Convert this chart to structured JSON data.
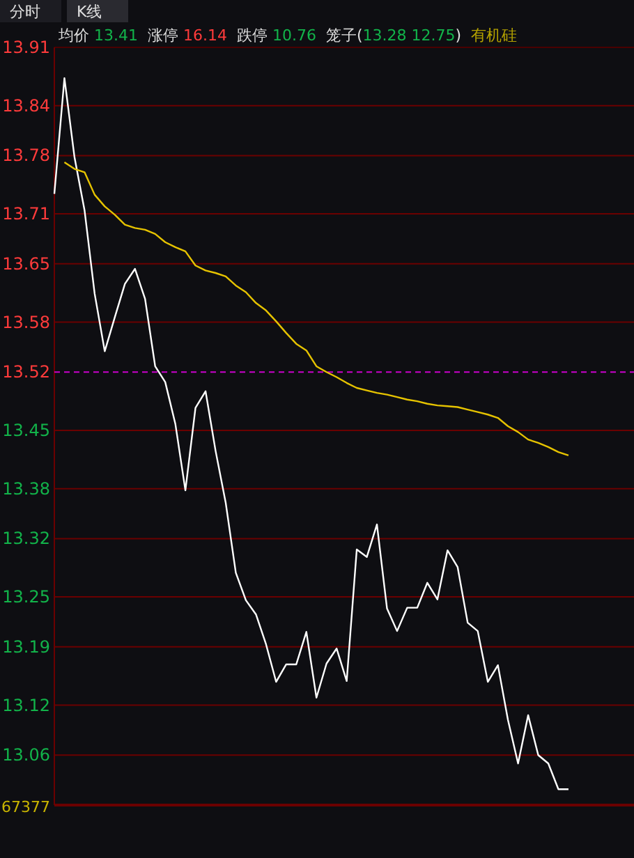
{
  "chart_data": {
    "type": "line",
    "annotations": [
      "分时",
      "K线",
      "均价 13.41",
      "涨停 16.14",
      "跌停 10.76",
      "笼子(13.28 12.75)",
      "有机硅",
      "67377"
    ],
    "categories": [
      null,
      null,
      null,
      null,
      null,
      null,
      null,
      null,
      null,
      null,
      null,
      null,
      null,
      null,
      null,
      null,
      null,
      null,
      null,
      null,
      null,
      null,
      null,
      null,
      null,
      null,
      null,
      null,
      null,
      null,
      null,
      null,
      null,
      null,
      null,
      null,
      null,
      null,
      null,
      null,
      null,
      null,
      null,
      null,
      null,
      null,
      null,
      null,
      null,
      null,
      null,
      null,
      null,
      null,
      null,
      null,
      null,
      null
    ],
    "ylim": [
      13.0,
      13.91
    ],
    "yticks": [
      13.91,
      13.84,
      13.78,
      13.71,
      13.65,
      13.58,
      13.52,
      13.45,
      13.38,
      13.32,
      13.25,
      13.19,
      13.12,
      13.06
    ],
    "tick_labels": "y",
    "grid": "y",
    "marker": "none",
    "ref_lines": [
      {
        "axis": "y",
        "value": 13.52,
        "color": "#cc00cc",
        "line_style": "dashed"
      }
    ],
    "series": [
      {
        "color": "#ffffff",
        "values": [
          13.734,
          13.873,
          13.778,
          13.714,
          13.614,
          13.545,
          13.586,
          13.626,
          13.644,
          13.608,
          13.527,
          13.508,
          13.458,
          13.378,
          13.477,
          13.497,
          13.425,
          13.363,
          13.279,
          13.246,
          13.229,
          13.193,
          13.148,
          13.169,
          13.169,
          13.208,
          13.129,
          13.17,
          13.188,
          13.149,
          13.307,
          13.298,
          13.337,
          13.236,
          13.209,
          13.237,
          13.237,
          13.267,
          13.247,
          13.306,
          13.286,
          13.219,
          13.209,
          13.148,
          13.168,
          13.102,
          13.05,
          13.108,
          13.06,
          13.05,
          13.019,
          13.019,
          null,
          null,
          null,
          null,
          null,
          null
        ]
      },
      {
        "color": "#e6c300",
        "values": [
          null,
          13.772,
          13.764,
          13.76,
          13.733,
          13.719,
          13.709,
          13.697,
          13.693,
          13.691,
          13.686,
          13.676,
          13.67,
          13.665,
          13.648,
          13.642,
          13.639,
          13.635,
          13.624,
          13.616,
          13.603,
          13.594,
          13.581,
          13.567,
          13.554,
          13.546,
          13.527,
          13.52,
          13.514,
          13.507,
          13.501,
          13.498,
          13.495,
          13.493,
          13.49,
          13.487,
          13.485,
          13.482,
          13.48,
          13.479,
          13.478,
          13.475,
          13.472,
          13.469,
          13.465,
          13.455,
          13.448,
          13.439,
          13.435,
          13.43,
          13.424,
          13.42,
          null,
          null,
          null,
          null,
          null,
          null
        ]
      }
    ]
  }
}
